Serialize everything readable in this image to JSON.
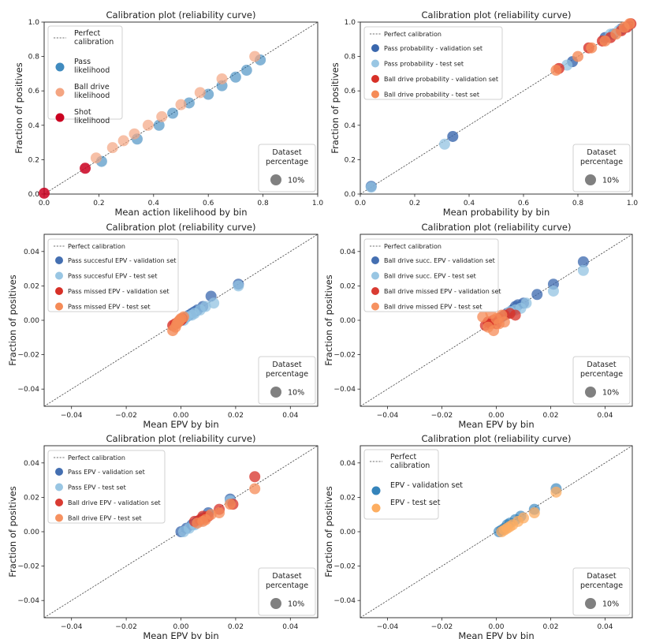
{
  "chart_data": [
    {
      "type": "scatter",
      "title": "Calibration plot  (reliability curve)",
      "xlabel": "Mean action likelihood by bin",
      "ylabel": "Fraction of positives",
      "xlim": [
        0,
        1
      ],
      "ylim": [
        0,
        1
      ],
      "xticks": [
        "0.0",
        "0.2",
        "0.4",
        "0.6",
        "0.8",
        "1.0"
      ],
      "yticks": [
        "0.0",
        "0.2",
        "0.4",
        "0.6",
        "0.8",
        "1.0"
      ],
      "grid": false,
      "legend_position": "top-left",
      "legend_large": true,
      "diagonal_label": [
        "Perfect",
        "calibration"
      ],
      "series": [
        {
          "name": [
            "Pass",
            "likelihood"
          ],
          "color": "#1f77b4",
          "alpha": 0.55,
          "x": [
            0.21,
            0.34,
            0.42,
            0.47,
            0.53,
            0.6,
            0.65,
            0.7,
            0.74,
            0.79
          ],
          "y": [
            0.19,
            0.32,
            0.4,
            0.47,
            0.53,
            0.58,
            0.63,
            0.68,
            0.72,
            0.78
          ]
        },
        {
          "name": [
            "Ball drive",
            "likelihood"
          ],
          "color": "#f4a582",
          "alpha": 0.7,
          "x": [
            0.19,
            0.25,
            0.29,
            0.33,
            0.38,
            0.43,
            0.5,
            0.57,
            0.65,
            0.77
          ],
          "y": [
            0.21,
            0.27,
            0.31,
            0.35,
            0.4,
            0.45,
            0.52,
            0.59,
            0.67,
            0.8
          ]
        },
        {
          "name": [
            "Shot",
            "likelihood"
          ],
          "color": "#ca0020",
          "alpha": 0.85,
          "x": [
            0.0,
            0.15
          ],
          "y": [
            0.005,
            0.15
          ]
        }
      ],
      "size_legend": {
        "title": [
          "Dataset",
          "percentage"
        ],
        "label": "10%"
      }
    },
    {
      "type": "scatter",
      "title": "Calibration plot  (reliability curve)",
      "xlabel": "Mean probability by bin",
      "ylabel": "Fraction of positives",
      "xlim": [
        0,
        1
      ],
      "ylim": [
        0,
        1
      ],
      "xticks": [
        "0.0",
        "0.2",
        "0.4",
        "0.6",
        "0.8",
        "1.0"
      ],
      "yticks": [
        "0.0",
        "0.2",
        "0.4",
        "0.6",
        "0.8",
        "1.0"
      ],
      "grid": false,
      "legend_position": "top-left",
      "legend_large": false,
      "diagonal_label": [
        "Perfect calibration"
      ],
      "series": [
        {
          "name": [
            "Pass probability - validation set"
          ],
          "color": "#3a67ad",
          "alpha": 0.8,
          "x": [
            0.04,
            0.34,
            0.78,
            0.9,
            0.93,
            0.96
          ],
          "y": [
            0.045,
            0.335,
            0.77,
            0.91,
            0.93,
            0.96
          ]
        },
        {
          "name": [
            "Pass probability - test set"
          ],
          "color": "#93c3e2",
          "alpha": 0.75,
          "x": [
            0.04,
            0.31,
            0.76,
            0.92,
            0.95
          ],
          "y": [
            0.04,
            0.29,
            0.75,
            0.93,
            0.95
          ]
        },
        {
          "name": [
            "Ball drive probability - validation set"
          ],
          "color": "#d73027",
          "alpha": 0.8,
          "x": [
            0.73,
            0.84,
            0.89,
            0.92,
            0.96,
            0.98,
            0.995
          ],
          "y": [
            0.73,
            0.85,
            0.89,
            0.91,
            0.95,
            0.97,
            0.99
          ]
        },
        {
          "name": [
            "Ball drive probability - test set"
          ],
          "color": "#f58b57",
          "alpha": 0.8,
          "x": [
            0.72,
            0.8,
            0.85,
            0.9,
            0.94,
            0.97,
            0.99
          ],
          "y": [
            0.72,
            0.8,
            0.85,
            0.89,
            0.93,
            0.97,
            0.99
          ]
        }
      ],
      "size_legend": {
        "title": [
          "Dataset",
          "percentage"
        ],
        "label": "10%"
      }
    },
    {
      "type": "scatter",
      "title": "Calibration plot  (reliability curve)",
      "xlabel": "Mean EPV by bin",
      "ylabel": "Fraction of positives",
      "xlim": [
        -0.05,
        0.05
      ],
      "ylim": [
        -0.05,
        0.05
      ],
      "xticks": [
        "−0.04",
        "−0.02",
        "0.00",
        "0.02",
        "0.04"
      ],
      "yticks": [
        "−0.04",
        "−0.02",
        "0.00",
        "0.02",
        "0.04"
      ],
      "grid": false,
      "legend_position": "top-left",
      "legend_large": false,
      "diagonal_label": [
        "Perfect calibration"
      ],
      "series": [
        {
          "name": [
            "Pass succesful EPV - validation set"
          ],
          "color": "#3a67ad",
          "alpha": 0.75,
          "x": [
            0.0,
            0.001,
            0.002,
            0.003,
            0.004,
            0.005,
            0.006,
            0.008,
            0.011,
            0.021
          ],
          "y": [
            0.0,
            0.001,
            0.002,
            0.003,
            0.004,
            0.005,
            0.006,
            0.008,
            0.014,
            0.021
          ]
        },
        {
          "name": [
            "Pass succesful EPV - test set"
          ],
          "color": "#93c3e2",
          "alpha": 0.75,
          "x": [
            0.001,
            0.002,
            0.004,
            0.005,
            0.007,
            0.009,
            0.012,
            0.021
          ],
          "y": [
            0.0,
            0.002,
            0.003,
            0.004,
            0.006,
            0.008,
            0.01,
            0.02
          ]
        },
        {
          "name": [
            "Pass missed EPV - validation set"
          ],
          "color": "#d73027",
          "alpha": 0.8,
          "x": [
            -0.003,
            -0.002,
            -0.001,
            0.0,
            0.0005
          ],
          "y": [
            -0.003,
            -0.002,
            -0.001,
            0.0,
            0.001
          ]
        },
        {
          "name": [
            "Pass missed EPV - test set"
          ],
          "color": "#f58b57",
          "alpha": 0.8,
          "x": [
            -0.003,
            -0.002,
            -0.0015,
            -0.001,
            -0.0005,
            0.0,
            0.001
          ],
          "y": [
            -0.006,
            -0.004,
            -0.002,
            -0.001,
            0.0,
            0.001,
            0.002
          ]
        }
      ],
      "size_legend": {
        "title": [
          "Dataset",
          "percentage"
        ],
        "label": "10%"
      }
    },
    {
      "type": "scatter",
      "title": "Calibration plot  (reliability curve)",
      "xlabel": "Mean EPV by bin",
      "ylabel": "Fraction of positives",
      "xlim": [
        -0.05,
        0.05
      ],
      "ylim": [
        -0.05,
        0.05
      ],
      "xticks": [
        "−0.04",
        "−0.02",
        "0.00",
        "0.02",
        "0.04"
      ],
      "yticks": [
        "−0.04",
        "−0.02",
        "0.00",
        "0.02",
        "0.04"
      ],
      "grid": false,
      "legend_position": "top-left",
      "legend_large": false,
      "diagonal_label": [
        "Perfect calibration"
      ],
      "series": [
        {
          "name": [
            "Ball drive succ. EPV - validation set"
          ],
          "color": "#3a67ad",
          "alpha": 0.75,
          "x": [
            0.002,
            0.004,
            0.006,
            0.007,
            0.008,
            0.01,
            0.015,
            0.021,
            0.032
          ],
          "y": [
            0.002,
            0.004,
            0.006,
            0.008,
            0.009,
            0.01,
            0.015,
            0.021,
            0.034
          ]
        },
        {
          "name": [
            "Ball drive succ. EPV - test set"
          ],
          "color": "#93c3e2",
          "alpha": 0.75,
          "x": [
            0.003,
            0.005,
            0.007,
            0.009,
            0.011,
            0.021,
            0.032
          ],
          "y": [
            0.003,
            0.005,
            0.006,
            0.007,
            0.01,
            0.017,
            0.029
          ]
        },
        {
          "name": [
            "Ball drive missed EPV - validation set"
          ],
          "color": "#d73027",
          "alpha": 0.75,
          "x": [
            -0.004,
            -0.003,
            -0.002,
            -0.001,
            0.0,
            0.001,
            0.003,
            0.005,
            0.007
          ],
          "y": [
            -0.003,
            -0.001,
            -0.002,
            0.0,
            -0.002,
            0.001,
            0.003,
            0.004,
            0.003
          ]
        },
        {
          "name": [
            "Ball drive missed EPV - test set"
          ],
          "color": "#f58b57",
          "alpha": 0.75,
          "x": [
            -0.005,
            -0.003,
            -0.002,
            -0.001,
            0.0,
            0.001,
            0.002,
            0.003
          ],
          "y": [
            0.002,
            -0.004,
            0.004,
            -0.006,
            0.001,
            -0.002,
            0.003,
            -0.001
          ]
        }
      ],
      "size_legend": {
        "title": [
          "Dataset",
          "percentage"
        ],
        "label": "10%"
      }
    },
    {
      "type": "scatter",
      "title": "Calibration plot  (reliability curve)",
      "xlabel": "Mean EPV by bin",
      "ylabel": "Fraction of positives",
      "xlim": [
        -0.05,
        0.05
      ],
      "ylim": [
        -0.05,
        0.05
      ],
      "xticks": [
        "−0.04",
        "−0.02",
        "0.00",
        "0.02",
        "0.04"
      ],
      "yticks": [
        "−0.04",
        "−0.02",
        "0.00",
        "0.02",
        "0.04"
      ],
      "grid": false,
      "legend_position": "top-left",
      "legend_large": false,
      "diagonal_label": [
        "Perfect calibration"
      ],
      "series": [
        {
          "name": [
            "Pass EPV - validation set"
          ],
          "color": "#3a67ad",
          "alpha": 0.75,
          "x": [
            0.0,
            0.002,
            0.004,
            0.006,
            0.008,
            0.01,
            0.018
          ],
          "y": [
            0.0,
            0.002,
            0.004,
            0.006,
            0.008,
            0.011,
            0.019
          ]
        },
        {
          "name": [
            "Pass EPV - test set"
          ],
          "color": "#93c3e2",
          "alpha": 0.75,
          "x": [
            0.001,
            0.003,
            0.005,
            0.007,
            0.009,
            0.018
          ],
          "y": [
            0.0,
            0.002,
            0.004,
            0.006,
            0.008,
            0.018
          ]
        },
        {
          "name": [
            "Ball drive EPV - validation set"
          ],
          "color": "#d73027",
          "alpha": 0.75,
          "x": [
            0.005,
            0.007,
            0.008,
            0.009,
            0.01,
            0.014,
            0.019,
            0.027
          ],
          "y": [
            0.006,
            0.007,
            0.009,
            0.008,
            0.009,
            0.013,
            0.016,
            0.032
          ]
        },
        {
          "name": [
            "Ball drive EPV - test set"
          ],
          "color": "#f58b57",
          "alpha": 0.75,
          "x": [
            0.006,
            0.008,
            0.009,
            0.011,
            0.014,
            0.018,
            0.027
          ],
          "y": [
            0.005,
            0.006,
            0.007,
            0.01,
            0.011,
            0.016,
            0.025
          ]
        }
      ],
      "size_legend": {
        "title": [
          "Dataset",
          "percentage"
        ],
        "label": "10%"
      }
    },
    {
      "type": "scatter",
      "title": "Calibration plot  (reliability curve)",
      "xlabel": "Mean EPV by bin",
      "ylabel": "Fraction of positives",
      "xlim": [
        -0.05,
        0.05
      ],
      "ylim": [
        -0.05,
        0.05
      ],
      "xticks": [
        "−0.04",
        "−0.02",
        "0.00",
        "0.02",
        "0.04"
      ],
      "yticks": [
        "−0.04",
        "−0.02",
        "0.00",
        "0.02",
        "0.04"
      ],
      "grid": false,
      "legend_position": "top-left",
      "legend_large": true,
      "diagonal_label": [
        "Perfect",
        "calibration"
      ],
      "series": [
        {
          "name": [
            "EPV - validation set"
          ],
          "color": "#1f77b4",
          "alpha": 0.6,
          "x": [
            0.001,
            0.002,
            0.003,
            0.004,
            0.005,
            0.007,
            0.009,
            0.014,
            0.022
          ],
          "y": [
            0.0,
            0.001,
            0.002,
            0.004,
            0.005,
            0.007,
            0.009,
            0.013,
            0.025
          ]
        },
        {
          "name": [
            "EPV - test set"
          ],
          "color": "#fdae61",
          "alpha": 0.75,
          "x": [
            0.002,
            0.003,
            0.004,
            0.005,
            0.006,
            0.008,
            0.01,
            0.014,
            0.022
          ],
          "y": [
            0.0,
            0.001,
            0.002,
            0.003,
            0.004,
            0.006,
            0.008,
            0.011,
            0.023
          ]
        }
      ],
      "size_legend": {
        "title": [
          "Dataset",
          "percentage"
        ],
        "label": "10%"
      }
    }
  ]
}
